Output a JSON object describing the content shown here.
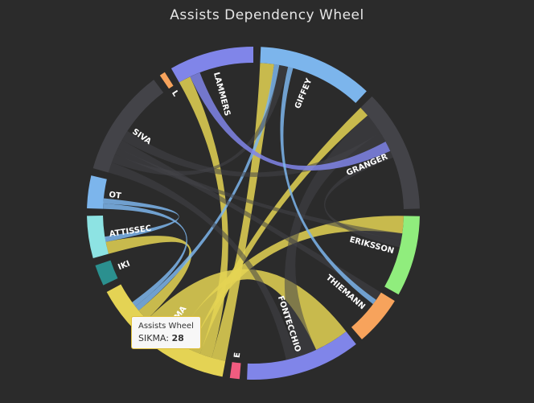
{
  "chart_data": {
    "type": "dependency-wheel",
    "title": "Assists Dependency Wheel",
    "nodes": [
      {
        "name": "GIFFEY",
        "color": "#7cb5ec",
        "weight": 60
      },
      {
        "name": "GRANGER",
        "color": "#434348",
        "weight": 64
      },
      {
        "name": "ERIKSSON",
        "color": "#90ed7d",
        "weight": 42
      },
      {
        "name": "THIEMANN",
        "color": "#f7a35c",
        "weight": 26
      },
      {
        "name": "FONTECCHIO",
        "color": "#8085e9",
        "weight": 60
      },
      {
        "name": "E",
        "color": "#f15c80",
        "weight": 5
      },
      {
        "name": "SIKMA",
        "color": "#e4d354",
        "weight": 76
      },
      {
        "name": "IKI",
        "color": "#2b908f",
        "weight": 11
      },
      {
        "name": "ATTISSEC",
        "color": "#8de3e3",
        "weight": 22
      },
      {
        "name": "OT",
        "color": "#7cb5ec",
        "weight": 17
      },
      {
        "name": "SIVA",
        "color": "#434348",
        "weight": 56
      },
      {
        "name": "L",
        "color": "#f7a35c",
        "weight": 3
      },
      {
        "name": "LAMMERS",
        "color": "#8085e9",
        "weight": 44
      }
    ],
    "links": [
      {
        "from": "SIKMA",
        "to": "GIFFEY",
        "value": 8
      },
      {
        "from": "SIKMA",
        "to": "LAMMERS",
        "value": 7
      },
      {
        "from": "SIKMA",
        "to": "GRANGER",
        "value": 6
      },
      {
        "from": "SIKMA",
        "to": "ERIKSSON",
        "value": 10
      },
      {
        "from": "SIKMA",
        "to": "FONTECCHIO",
        "value": 20
      },
      {
        "from": "SIKMA",
        "to": "ATTISSEC",
        "value": 7
      },
      {
        "from": "GIFFEY",
        "to": "SIKMA",
        "value": 3
      },
      {
        "from": "OT",
        "to": "SIKMA",
        "value": 3
      },
      {
        "from": "OT",
        "to": "ATTISSEC",
        "value": 3
      },
      {
        "from": "GRANGER",
        "to": "FONTECCHIO",
        "value": 12
      },
      {
        "from": "SIVA",
        "to": "FONTECCHIO",
        "value": 6
      },
      {
        "from": "SIVA",
        "to": "GIFFEY",
        "value": 5
      },
      {
        "from": "SIVA",
        "to": "ERIKSSON",
        "value": 4
      },
      {
        "from": "SIVA",
        "to": "THIEMANN",
        "value": 5
      },
      {
        "from": "SIVA",
        "to": "GRANGER",
        "value": 6
      },
      {
        "from": "LAMMERS",
        "to": "GRANGER",
        "value": 6
      },
      {
        "from": "GIFFEY",
        "to": "THIEMANN",
        "value": 3
      },
      {
        "from": "GRANGER",
        "to": "ERIKSSON",
        "value": 4
      }
    ],
    "tooltip": {
      "title": "Assists Wheel",
      "label": "SIKMA",
      "value": "28"
    }
  }
}
